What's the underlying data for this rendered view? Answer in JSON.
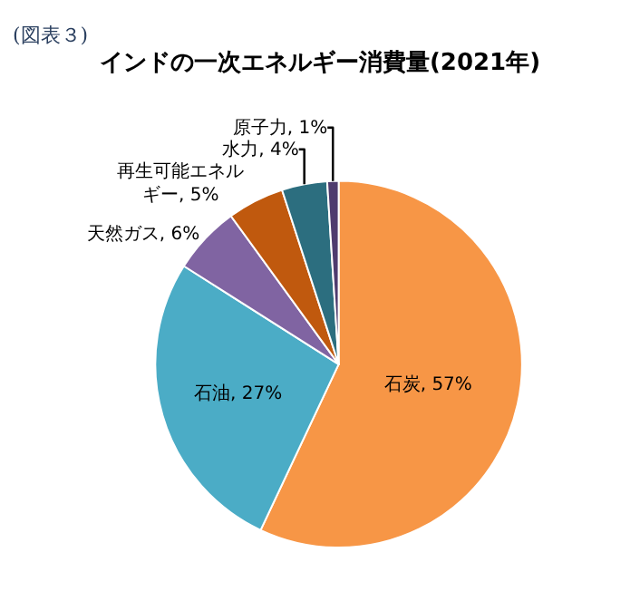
{
  "chart_data": {
    "type": "pie",
    "title": "インドの一次エネルギー消費量(2021年)",
    "annotations": [
      "(図表３)"
    ],
    "categories": [
      "石炭",
      "石油",
      "天然ガス",
      "再生可能エネルギー",
      "水力",
      "原子力"
    ],
    "values": [
      57,
      27,
      6,
      5,
      4,
      1
    ],
    "colors": [
      "#f79646",
      "#4bacc6",
      "#8064a2",
      "#c0590e",
      "#2c6e7f",
      "#4f3b6e"
    ],
    "value_labels": [
      ", 57%",
      ", 27%",
      ", 6%",
      ", 5%",
      ", 4%",
      ", 1%"
    ],
    "legend": false
  }
}
